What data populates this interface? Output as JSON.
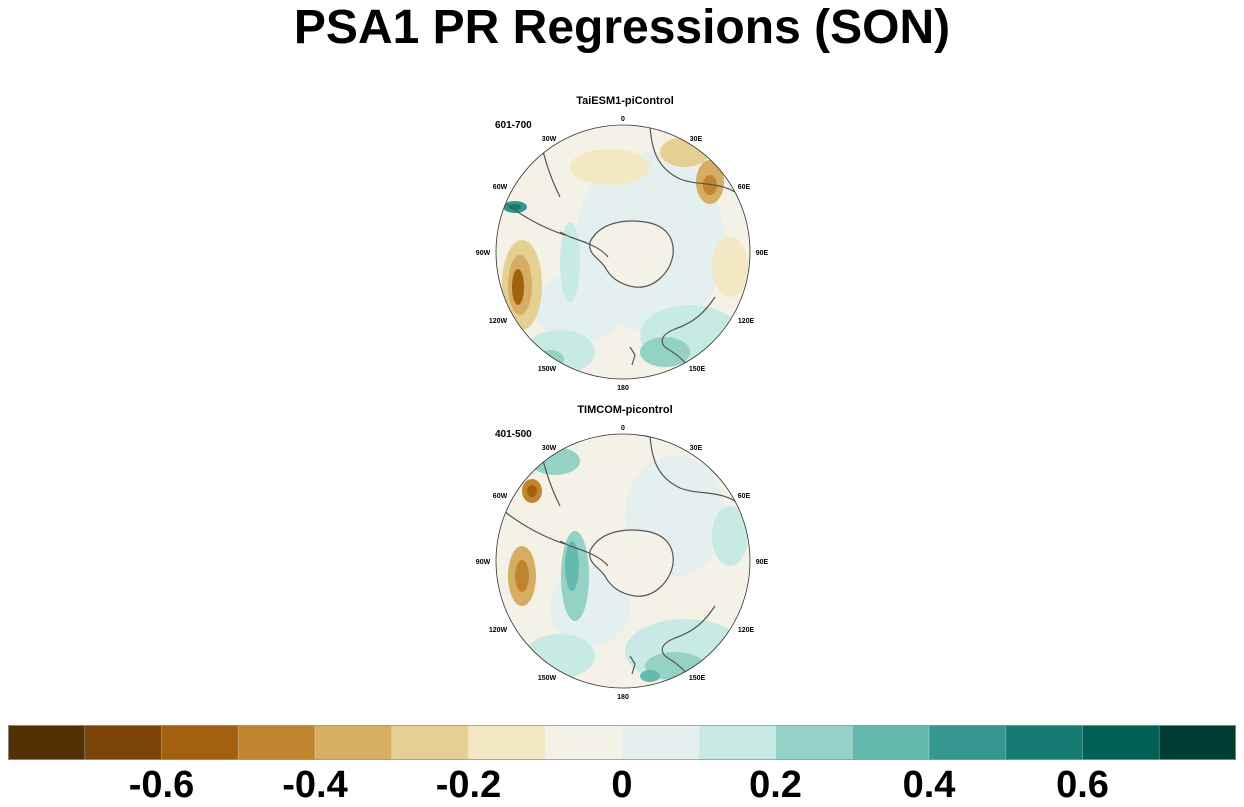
{
  "title": "PSA1 PR Regressions (SON)",
  "panels": [
    {
      "title": "TaiESM1-piControl",
      "label": "601-700"
    },
    {
      "title": "TIMCOM-picontrol",
      "label": "401-500"
    }
  ],
  "longitude_labels": [
    "0",
    "30E",
    "60E",
    "90E",
    "120E",
    "150E",
    "180",
    "150W",
    "120W",
    "90W",
    "60W",
    "30W"
  ],
  "colorbar": {
    "colors": [
      "#543005",
      "#7b4509",
      "#a3600f",
      "#c0862f",
      "#d6ad62",
      "#e6cf92",
      "#f4e7c3",
      "#f4f1e7",
      "#e3f0ef",
      "#c7eae5",
      "#94d2c6",
      "#66b9ad",
      "#35978f",
      "#147b71",
      "#015f53",
      "#003c30"
    ],
    "tick_labels": [
      "-0.6",
      "-0.4",
      "-0.2",
      "0",
      "0.2",
      "0.4",
      "0.6"
    ]
  }
}
